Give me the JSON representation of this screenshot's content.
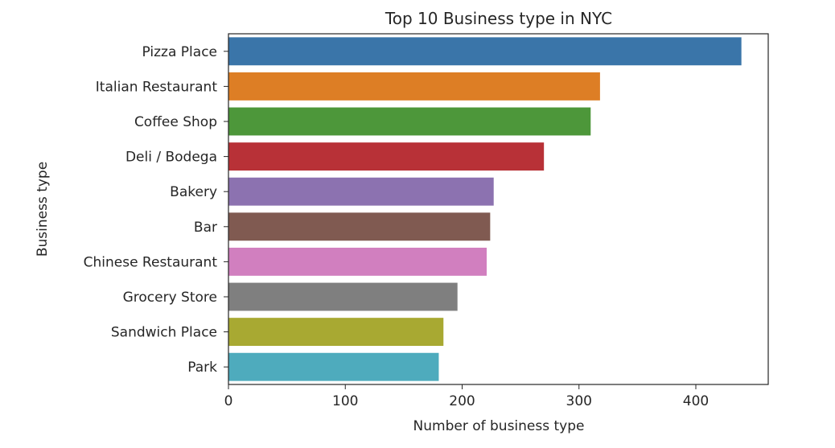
{
  "chart_data": {
    "type": "bar",
    "orientation": "horizontal",
    "title": "Top 10 Business type in NYC",
    "xlabel": "Number of business type",
    "ylabel": "Business type",
    "xlim": [
      0,
      460
    ],
    "xticks": [
      0,
      100,
      200,
      300,
      400
    ],
    "grid": false,
    "categories": [
      "Pizza Place",
      "Italian Restaurant",
      "Coffee Shop",
      "Deli / Bodega",
      "Bakery",
      "Bar",
      "Chinese Restaurant",
      "Grocery Store",
      "Sandwich Place",
      "Park"
    ],
    "values": [
      439,
      318,
      310,
      270,
      227,
      224,
      221,
      196,
      184,
      180
    ],
    "colors": [
      "#3a75a9",
      "#dd7e25",
      "#4d973a",
      "#b83137",
      "#8c72b0",
      "#805a51",
      "#d17fbf",
      "#7f7f7f",
      "#a8a932",
      "#4eabbd"
    ]
  }
}
